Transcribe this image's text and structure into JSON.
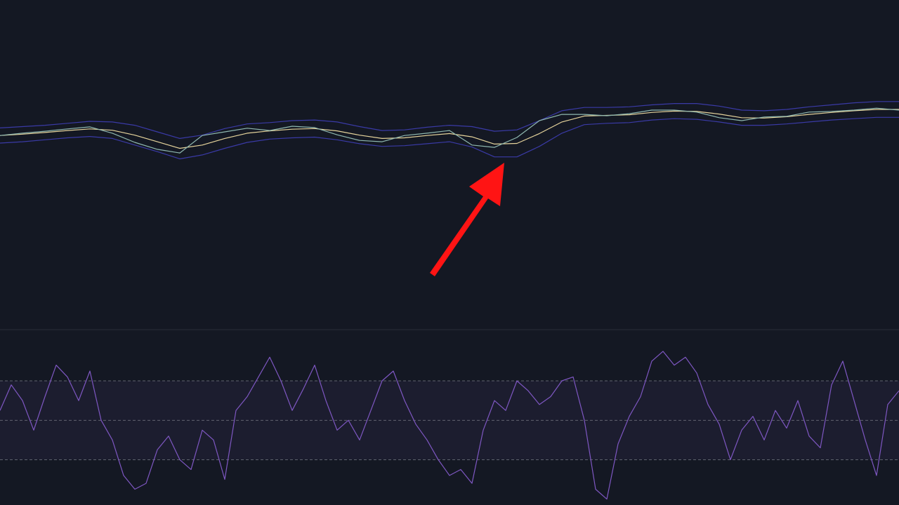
{
  "chart_data": [
    {
      "type": "line",
      "ylim": [
        0,
        100
      ],
      "series": [
        {
          "color": "#3a3aa6",
          "values": [
            61.2,
            61.6,
            62.0,
            62.6,
            63.2,
            63.0,
            62.0,
            60.0,
            58.0,
            59.0,
            61.0,
            62.4,
            62.8,
            63.4,
            63.6,
            63.0,
            61.6,
            60.4,
            60.6,
            61.4,
            62.0,
            61.6,
            60.2,
            60.6,
            63.4,
            66.4,
            67.4,
            67.4,
            67.6,
            68.2,
            68.6,
            68.6,
            67.8,
            66.6,
            66.4,
            66.8,
            67.6,
            68.2,
            68.8,
            69.2,
            69.2
          ]
        },
        {
          "color": "#3a3aa6",
          "values": [
            56.6,
            57.0,
            57.6,
            58.2,
            58.6,
            58.0,
            56.0,
            54.0,
            51.8,
            53.0,
            55.0,
            56.8,
            57.8,
            58.2,
            58.4,
            57.6,
            56.4,
            55.6,
            55.8,
            56.4,
            57.0,
            55.4,
            52.4,
            52.4,
            55.6,
            59.6,
            62.2,
            62.6,
            62.8,
            63.6,
            64.0,
            63.8,
            63.0,
            62.0,
            62.0,
            62.4,
            63.0,
            63.6,
            64.0,
            64.4,
            64.4
          ]
        },
        {
          "color": "#e6d49c",
          "values": [
            58.9,
            59.3,
            59.8,
            60.4,
            60.9,
            60.5,
            59.0,
            57.0,
            55.0,
            56.0,
            58.0,
            59.6,
            60.3,
            60.8,
            61.0,
            60.3,
            59.0,
            58.0,
            58.2,
            58.9,
            59.5,
            58.5,
            56.3,
            56.5,
            59.5,
            63.0,
            64.8,
            65.0,
            65.2,
            65.9,
            66.3,
            66.2,
            65.4,
            64.3,
            64.2,
            64.6,
            65.3,
            65.9,
            66.4,
            66.8,
            66.8
          ]
        },
        {
          "color": "#8fb8b0",
          "values": [
            58.9,
            59.6,
            60.2,
            60.9,
            61.5,
            59.6,
            56.8,
            54.7,
            53.6,
            58.9,
            60.0,
            61.1,
            60.4,
            61.7,
            61.3,
            59.1,
            57.4,
            57.0,
            58.9,
            59.6,
            60.4,
            56.0,
            55.3,
            58.3,
            63.4,
            65.3,
            65.3,
            64.9,
            65.5,
            66.6,
            66.6,
            66.0,
            64.3,
            63.4,
            64.5,
            64.7,
            66.0,
            66.2,
            66.6,
            67.2,
            66.6
          ]
        }
      ]
    },
    {
      "type": "line",
      "ylim": [
        7,
        96
      ],
      "yticks": [
        30,
        50,
        70
      ],
      "grid": true,
      "series": [
        {
          "color": "#7e57c2",
          "values": [
            55,
            68,
            60,
            45,
            62,
            78,
            72,
            60,
            75,
            50,
            40,
            22,
            15,
            18,
            35,
            42,
            30,
            25,
            45,
            40,
            20,
            55,
            62,
            72,
            82,
            70,
            55,
            66,
            78,
            60,
            45,
            50,
            40,
            55,
            70,
            75,
            60,
            48,
            40,
            30,
            22,
            25,
            18,
            45,
            60,
            55,
            70,
            65,
            58,
            62,
            70,
            72,
            50,
            15,
            10,
            38,
            52,
            62,
            80,
            85,
            78,
            82,
            74,
            58,
            48,
            30,
            45,
            52,
            40,
            55,
            46,
            60,
            42,
            36,
            68,
            80,
            60,
            40,
            22,
            58,
            65
          ]
        }
      ]
    }
  ]
}
